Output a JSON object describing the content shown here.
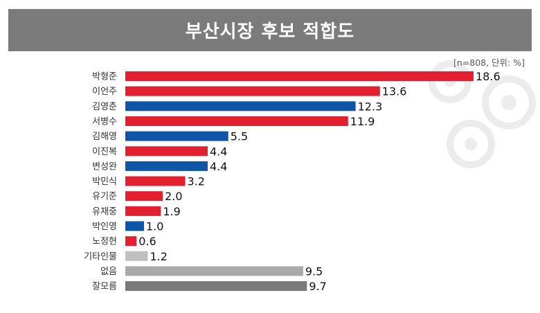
{
  "header": {
    "title": "부산시장 후보 적합도",
    "note": "[n=808, 단위: %]"
  },
  "colors": {
    "red": "#e32030",
    "blue": "#0f56a8",
    "light_gray": "#bfbfbf",
    "mid_gray": "#a9a9a9",
    "dark_gray": "#7a7a7a",
    "title_bg": "#7b7b7b"
  },
  "chart_data": {
    "type": "bar",
    "orientation": "horizontal",
    "title": "부산시장 후보 적합도",
    "note": "[n=808, 단위: %]",
    "categories": [
      "박형준",
      "이언주",
      "김영춘",
      "서병수",
      "김해영",
      "이진복",
      "변성완",
      "박민식",
      "유기준",
      "유재중",
      "박인영",
      "노정현",
      "기타인물",
      "없음",
      "잘모름"
    ],
    "values": [
      18.6,
      13.6,
      12.3,
      11.9,
      5.5,
      4.4,
      4.4,
      3.2,
      2.0,
      1.9,
      1.0,
      0.6,
      1.2,
      9.5,
      9.7
    ],
    "labels": [
      "18.6",
      "13.6",
      "12.3",
      "11.9",
      "5.5",
      "4.4",
      "4.4",
      "3.2",
      "2.0",
      "1.9",
      "1.0",
      "0.6",
      "1.2",
      "9.5",
      "9.7"
    ],
    "bar_colors": [
      "red",
      "red",
      "blue",
      "red",
      "blue",
      "red",
      "blue",
      "red",
      "red",
      "red",
      "blue",
      "red",
      "light_gray",
      "mid_gray",
      "dark_gray"
    ],
    "xlim": [
      0,
      18.6
    ],
    "grid": false,
    "legend": "none"
  }
}
